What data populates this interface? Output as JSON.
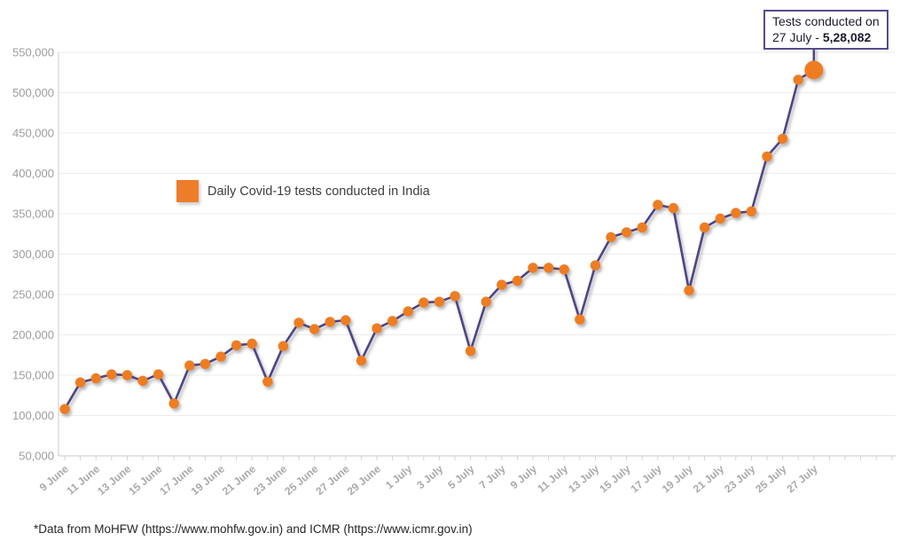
{
  "chart_data": {
    "type": "line",
    "legend": "Daily Covid-19 tests conducted in India",
    "footer": "*Data from MoHFW (https://www.mohfw.gov.in) and ICMR (https://www.icmr.gov.in)",
    "annotation": {
      "line1": "Tests conducted on",
      "date_prefix": "27 July - ",
      "value": "5,28,082"
    },
    "ylim": [
      50000,
      550000
    ],
    "ytick_step": 50000,
    "ytick_labels": [
      "50,000",
      "100,000",
      "150,000",
      "200,000",
      "250,000",
      "300,000",
      "350,000",
      "400,000",
      "450,000",
      "500,000",
      "550,000"
    ],
    "xtick_label_every": 2,
    "grid": "horizontal-only",
    "legend_position": "upper-left-inside",
    "x": [
      "9 June",
      "10 June",
      "11 June",
      "12 June",
      "13 June",
      "14 June",
      "15 June",
      "16 June",
      "17 June",
      "18 June",
      "19 June",
      "20 June",
      "21 June",
      "22 June",
      "23 June",
      "24 June",
      "25 June",
      "26 June",
      "27 June",
      "28 June",
      "29 June",
      "30 June",
      "1 July",
      "2 July",
      "3 July",
      "4 July",
      "5 July",
      "6 July",
      "7 July",
      "8 July",
      "9 July",
      "10 July",
      "11 July",
      "12 July",
      "13 July",
      "14 July",
      "15 July",
      "16 July",
      "17 July",
      "18 July",
      "19 July",
      "20 July",
      "21 July",
      "22 July",
      "23 July",
      "24 July",
      "25 July",
      "26 July",
      "27 July"
    ],
    "values": [
      108000,
      141000,
      146000,
      151000,
      150000,
      143000,
      151000,
      115000,
      162000,
      164000,
      173000,
      187000,
      189000,
      142000,
      186000,
      215000,
      207000,
      216000,
      218000,
      168000,
      208000,
      217000,
      229000,
      240000,
      241000,
      248000,
      180000,
      241000,
      262000,
      267000,
      283000,
      283000,
      281000,
      219000,
      286000,
      321000,
      327000,
      333000,
      361000,
      357000,
      255000,
      333000,
      344000,
      351000,
      353000,
      421000,
      443000,
      516000,
      528082
    ],
    "highlight_point": {
      "label": "27 July",
      "value": 528082
    },
    "colors": {
      "line": "#4e4486",
      "point": "#ee7d23",
      "legend_swatch": "#ed7d2a",
      "annotation_border": "#564a8c",
      "gridline": "#ececec",
      "axis": "#c9c9c9",
      "y_label": "#9c9c9c",
      "x_label": "#a9a9a9"
    }
  }
}
